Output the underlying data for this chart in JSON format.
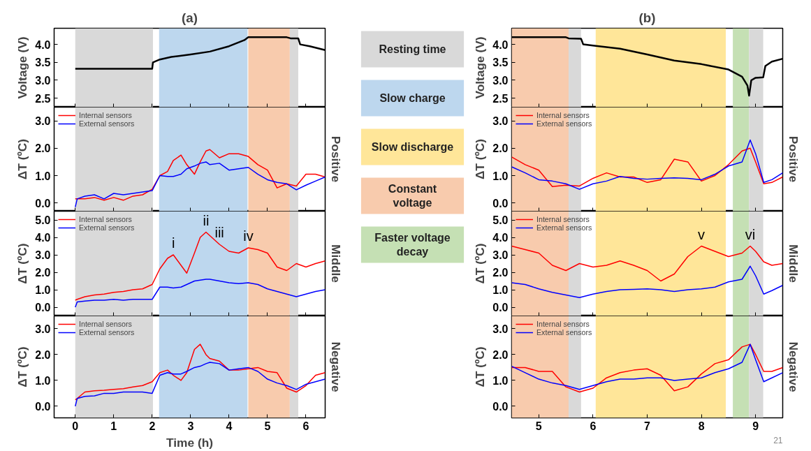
{
  "chart_data": [
    {
      "type": "line",
      "title": "(a)",
      "ylabel": "Voltage (V)",
      "xlim": [
        -0.55,
        6.5
      ],
      "xticks": [
        0,
        1,
        2,
        3,
        4,
        5,
        6
      ],
      "ylim": [
        2.25,
        4.45
      ],
      "yticks": [
        {
          "value": 2.5,
          "label": "2.5"
        },
        {
          "value": 3,
          "label": "3.0"
        },
        {
          "value": 3.5,
          "label": "3.5"
        },
        {
          "value": 4,
          "label": "4.0"
        }
      ],
      "tick_labels": "y",
      "bands": [
        {
          "axis": "x",
          "from": 0,
          "to": 2.02,
          "color": "#d9d9d9"
        },
        {
          "axis": "x",
          "from": 2.18,
          "to": 4.48,
          "color": "#bdd7ee"
        },
        {
          "axis": "x",
          "from": 4.5,
          "to": 5.58,
          "color": "#f8cbad"
        },
        {
          "axis": "x",
          "from": 5.58,
          "to": 5.8,
          "color": "#d9d9d9"
        }
      ],
      "series": [
        {
          "color": "#000000",
          "x": [
            0,
            2.0,
            2.02,
            2.2,
            2.5,
            3,
            3.5,
            4,
            4.4,
            4.5,
            5.5,
            5.6,
            5.8,
            5.85,
            6.1,
            6.5
          ],
          "values": [
            3.32,
            3.32,
            3.5,
            3.58,
            3.65,
            3.72,
            3.8,
            3.95,
            4.12,
            4.2,
            4.2,
            4.17,
            4.17,
            4.0,
            3.95,
            3.84
          ]
        }
      ]
    },
    {
      "type": "line",
      "ylabel": "ΔT (ºC)",
      "y2label": "Positive",
      "xlim": [
        -0.55,
        6.5
      ],
      "xticks": [
        0,
        1,
        2,
        3,
        4,
        5,
        6
      ],
      "ylim": [
        -0.3,
        3.5
      ],
      "yticks": [
        {
          "value": 0,
          "label": "0.0"
        },
        {
          "value": 1,
          "label": "1.0"
        },
        {
          "value": 2,
          "label": "2.0"
        },
        {
          "value": 3,
          "label": "3.0"
        }
      ],
      "tick_labels": "y",
      "legend": "top left",
      "bands": [
        {
          "axis": "x",
          "from": 0,
          "to": 2.02,
          "color": "#d9d9d9"
        },
        {
          "axis": "x",
          "from": 2.18,
          "to": 4.48,
          "color": "#bdd7ee"
        },
        {
          "axis": "x",
          "from": 4.5,
          "to": 5.58,
          "color": "#f8cbad"
        },
        {
          "axis": "x",
          "from": 5.58,
          "to": 5.8,
          "color": "#d9d9d9"
        }
      ],
      "x": [
        0,
        0.05,
        0.25,
        0.5,
        0.75,
        1,
        1.25,
        1.5,
        1.75,
        2,
        2.2,
        2.4,
        2.55,
        2.75,
        2.9,
        3.1,
        3.25,
        3.4,
        3.5,
        3.75,
        4,
        4.25,
        4.5,
        4.75,
        5,
        5.25,
        5.5,
        5.75,
        6,
        6.25,
        6.5
      ],
      "series": [
        {
          "name": "Internal sensors",
          "color": "#ff0000",
          "values": [
            0.15,
            0.15,
            0.15,
            0.2,
            0.1,
            0.2,
            0.1,
            0.25,
            0.3,
            0.5,
            1.0,
            1.15,
            1.55,
            1.75,
            1.4,
            1.05,
            1.5,
            1.9,
            1.95,
            1.65,
            1.8,
            1.8,
            1.7,
            1.4,
            1.2,
            0.55,
            0.7,
            0.62,
            1.05,
            1.05,
            0.95
          ]
        },
        {
          "name": "External sensors",
          "color": "#0000ff",
          "values": [
            -0.15,
            0.15,
            0.25,
            0.3,
            0.15,
            0.35,
            0.3,
            0.35,
            0.4,
            0.45,
            1.0,
            0.97,
            0.97,
            1.05,
            1.25,
            1.35,
            1.45,
            1.5,
            1.4,
            1.45,
            1.2,
            1.25,
            1.3,
            1.05,
            0.85,
            0.75,
            0.7,
            0.48,
            0.65,
            0.8,
            0.95
          ]
        }
      ]
    },
    {
      "type": "line",
      "ylabel": "ΔT (ºC)",
      "y2label": "Middle",
      "xlim": [
        -0.55,
        6.5
      ],
      "xticks": [
        0,
        1,
        2,
        3,
        4,
        5,
        6
      ],
      "ylim": [
        -0.5,
        5.5
      ],
      "yticks": [
        {
          "value": 0,
          "label": "0.0"
        },
        {
          "value": 1,
          "label": "1.0"
        },
        {
          "value": 2,
          "label": "2.0"
        },
        {
          "value": 3,
          "label": "3.0"
        },
        {
          "value": 4,
          "label": "4.0"
        },
        {
          "value": 5,
          "label": "5.0"
        }
      ],
      "tick_labels": "y",
      "legend": "top left",
      "bands": [
        {
          "axis": "x",
          "from": 0,
          "to": 2.02,
          "color": "#d9d9d9"
        },
        {
          "axis": "x",
          "from": 2.18,
          "to": 4.48,
          "color": "#bdd7ee"
        },
        {
          "axis": "x",
          "from": 4.5,
          "to": 5.58,
          "color": "#f8cbad"
        },
        {
          "axis": "x",
          "from": 5.58,
          "to": 5.8,
          "color": "#d9d9d9"
        }
      ],
      "annotations": [
        {
          "text": "i",
          "x": 2.55,
          "y": 3.0
        },
        {
          "text": "ii",
          "x": 3.4,
          "y": 4.3
        },
        {
          "text": "iii",
          "x": 3.75,
          "y": 3.6
        },
        {
          "text": "iv",
          "x": 4.5,
          "y": 3.4
        }
      ],
      "x": [
        0,
        0.05,
        0.25,
        0.5,
        0.75,
        1,
        1.25,
        1.5,
        1.75,
        2,
        2.2,
        2.4,
        2.55,
        2.75,
        2.9,
        3.1,
        3.25,
        3.4,
        3.5,
        3.75,
        4,
        4.25,
        4.5,
        4.75,
        5,
        5.25,
        5.5,
        5.75,
        6,
        6.25,
        6.5
      ],
      "series": [
        {
          "name": "Internal sensors",
          "color": "#ff0000",
          "values": [
            0.4,
            0.45,
            0.6,
            0.7,
            0.75,
            0.85,
            0.9,
            1.0,
            1.05,
            1.3,
            2.2,
            2.8,
            3.0,
            2.4,
            1.95,
            3.1,
            4.0,
            4.3,
            4.1,
            3.6,
            3.2,
            3.1,
            3.4,
            3.3,
            3.1,
            2.3,
            2.1,
            2.5,
            2.3,
            2.5,
            2.65
          ]
        },
        {
          "name": "External sensors",
          "color": "#0000ff",
          "values": [
            0.0,
            0.3,
            0.35,
            0.4,
            0.4,
            0.45,
            0.4,
            0.45,
            0.45,
            0.45,
            1.15,
            1.15,
            1.1,
            1.15,
            1.3,
            1.5,
            1.55,
            1.6,
            1.6,
            1.5,
            1.4,
            1.35,
            1.4,
            1.3,
            1.05,
            0.9,
            0.75,
            0.6,
            0.75,
            0.9,
            1.0
          ]
        }
      ]
    },
    {
      "type": "line",
      "ylabel": "ΔT (ºC)",
      "y2label": "Negative",
      "xlabel": "Time (h)",
      "xlim": [
        -0.55,
        6.5
      ],
      "xticks": [
        0,
        1,
        2,
        3,
        4,
        5,
        6
      ],
      "ylim": [
        -0.45,
        3.5
      ],
      "yticks": [
        {
          "value": 0,
          "label": "0.0"
        },
        {
          "value": 1,
          "label": "1.0"
        },
        {
          "value": 2,
          "label": "2.0"
        },
        {
          "value": 3,
          "label": "3.0"
        }
      ],
      "legend": "top left",
      "bands": [
        {
          "axis": "x",
          "from": 0,
          "to": 2.02,
          "color": "#d9d9d9"
        },
        {
          "axis": "x",
          "from": 2.18,
          "to": 4.48,
          "color": "#bdd7ee"
        },
        {
          "axis": "x",
          "from": 4.5,
          "to": 5.58,
          "color": "#f8cbad"
        },
        {
          "axis": "x",
          "from": 5.58,
          "to": 5.8,
          "color": "#d9d9d9"
        }
      ],
      "x": [
        0,
        0.05,
        0.25,
        0.5,
        0.75,
        1,
        1.25,
        1.5,
        1.75,
        2,
        2.2,
        2.4,
        2.55,
        2.75,
        2.9,
        3.1,
        3.25,
        3.4,
        3.5,
        3.75,
        4,
        4.25,
        4.5,
        4.75,
        5,
        5.25,
        5.5,
        5.75,
        6,
        6.25,
        6.5
      ],
      "series": [
        {
          "name": "Internal sensors",
          "color": "#ff0000",
          "values": [
            0.25,
            0.3,
            0.55,
            0.6,
            0.62,
            0.65,
            0.68,
            0.75,
            0.8,
            0.95,
            1.3,
            1.4,
            1.2,
            1.0,
            1.3,
            2.2,
            2.4,
            2.0,
            1.85,
            1.75,
            1.4,
            1.4,
            1.45,
            1.5,
            1.35,
            1.3,
            0.7,
            0.55,
            0.8,
            1.2,
            1.3
          ]
        },
        {
          "name": "External sensors",
          "color": "#0000ff",
          "values": [
            0.0,
            0.3,
            0.38,
            0.4,
            0.5,
            0.5,
            0.55,
            0.55,
            0.55,
            0.5,
            1.2,
            1.3,
            1.25,
            1.25,
            1.35,
            1.5,
            1.55,
            1.65,
            1.7,
            1.65,
            1.4,
            1.45,
            1.5,
            1.35,
            1.05,
            0.9,
            0.8,
            0.65,
            0.85,
            0.95,
            1.05
          ]
        }
      ]
    },
    {
      "type": "other",
      "categories": [
        "Resting time",
        "Slow charge",
        "Slow discharge",
        "Constant voltage",
        "Faster voltage decay"
      ],
      "colors": [
        "#d9d9d9",
        "#bdd7ee",
        "#ffe699",
        "#f8cbad",
        "#c5e0b4"
      ]
    },
    {
      "type": "line",
      "title": "(b)",
      "ylabel": "Voltage (V)",
      "xlim": [
        4.5,
        9.5
      ],
      "xticks": [
        5,
        6,
        7,
        8,
        9
      ],
      "ylim": [
        2.25,
        4.45
      ],
      "yticks": [
        {
          "value": 2.5,
          "label": "2.5"
        },
        {
          "value": 3,
          "label": "3.0"
        },
        {
          "value": 3.5,
          "label": "3.5"
        },
        {
          "value": 4,
          "label": "4.0"
        }
      ],
      "tick_labels": "y",
      "bands": [
        {
          "axis": "x",
          "from": 4.5,
          "to": 5.55,
          "color": "#f8cbad"
        },
        {
          "axis": "x",
          "from": 5.55,
          "to": 5.78,
          "color": "#d9d9d9"
        },
        {
          "axis": "x",
          "from": 6.05,
          "to": 8.45,
          "color": "#ffe699"
        },
        {
          "axis": "x",
          "from": 8.58,
          "to": 8.88,
          "color": "#c5e0b4"
        },
        {
          "axis": "x",
          "from": 8.88,
          "to": 9.14,
          "color": "#d9d9d9"
        }
      ],
      "series": [
        {
          "color": "#000000",
          "x": [
            4.5,
            5.5,
            5.55,
            5.78,
            5.82,
            6,
            6.5,
            7,
            7.5,
            8,
            8.5,
            8.75,
            8.85,
            8.88,
            8.92,
            9.0,
            9.14,
            9.18,
            9.3,
            9.5
          ],
          "values": [
            4.2,
            4.2,
            4.17,
            4.16,
            4.0,
            3.97,
            3.88,
            3.72,
            3.55,
            3.45,
            3.3,
            3.1,
            2.85,
            2.57,
            3.0,
            3.07,
            3.08,
            3.4,
            3.52,
            3.6
          ]
        }
      ]
    },
    {
      "type": "line",
      "ylabel": "ΔT (ºC)",
      "y2label": "Positive",
      "xlim": [
        4.5,
        9.5
      ],
      "xticks": [
        5,
        6,
        7,
        8,
        9
      ],
      "ylim": [
        -0.3,
        3.5
      ],
      "yticks": [
        {
          "value": 0,
          "label": "0.0"
        },
        {
          "value": 1,
          "label": "1.0"
        },
        {
          "value": 2,
          "label": "2.0"
        },
        {
          "value": 3,
          "label": "3.0"
        }
      ],
      "tick_labels": "y",
      "legend": "top left",
      "bands": [
        {
          "axis": "x",
          "from": 4.5,
          "to": 5.55,
          "color": "#f8cbad"
        },
        {
          "axis": "x",
          "from": 5.55,
          "to": 5.78,
          "color": "#d9d9d9"
        },
        {
          "axis": "x",
          "from": 6.05,
          "to": 8.45,
          "color": "#ffe699"
        },
        {
          "axis": "x",
          "from": 8.58,
          "to": 8.88,
          "color": "#c5e0b4"
        },
        {
          "axis": "x",
          "from": 8.88,
          "to": 9.14,
          "color": "#d9d9d9"
        }
      ],
      "x": [
        4.5,
        4.75,
        5,
        5.25,
        5.5,
        5.75,
        6,
        6.25,
        6.5,
        6.75,
        7,
        7.25,
        7.5,
        7.75,
        8,
        8.25,
        8.5,
        8.75,
        8.9,
        9.0,
        9.15,
        9.3,
        9.5
      ],
      "series": [
        {
          "name": "Internal sensors",
          "color": "#ff0000",
          "values": [
            1.68,
            1.4,
            1.2,
            0.6,
            0.65,
            0.62,
            0.9,
            1.1,
            0.95,
            0.95,
            0.75,
            0.85,
            1.6,
            1.5,
            0.8,
            1.0,
            1.4,
            1.9,
            2.0,
            1.5,
            0.7,
            0.75,
            0.95
          ]
        },
        {
          "name": "External sensors",
          "color": "#0000ff",
          "values": [
            1.32,
            1.1,
            0.85,
            0.8,
            0.7,
            0.5,
            0.7,
            0.8,
            0.97,
            0.9,
            0.87,
            0.9,
            0.92,
            0.9,
            0.85,
            1.05,
            1.35,
            1.5,
            2.3,
            1.8,
            0.75,
            0.85,
            1.1
          ]
        }
      ]
    },
    {
      "type": "line",
      "ylabel": "ΔT (ºC)",
      "y2label": "Middle",
      "xlim": [
        4.5,
        9.5
      ],
      "xticks": [
        5,
        6,
        7,
        8,
        9
      ],
      "ylim": [
        -0.5,
        5.5
      ],
      "yticks": [
        {
          "value": 0,
          "label": "0.0"
        },
        {
          "value": 1,
          "label": "1.0"
        },
        {
          "value": 2,
          "label": "2.0"
        },
        {
          "value": 3,
          "label": "3.0"
        },
        {
          "value": 4,
          "label": "4.0"
        },
        {
          "value": 5,
          "label": "5.0"
        }
      ],
      "tick_labels": "y",
      "legend": "top left",
      "bands": [
        {
          "axis": "x",
          "from": 4.5,
          "to": 5.55,
          "color": "#f8cbad"
        },
        {
          "axis": "x",
          "from": 5.55,
          "to": 5.78,
          "color": "#d9d9d9"
        },
        {
          "axis": "x",
          "from": 6.05,
          "to": 8.45,
          "color": "#ffe699"
        },
        {
          "axis": "x",
          "from": 8.58,
          "to": 8.88,
          "color": "#c5e0b4"
        },
        {
          "axis": "x",
          "from": 8.88,
          "to": 9.14,
          "color": "#d9d9d9"
        }
      ],
      "annotations": [
        {
          "text": "v",
          "x": 8.0,
          "y": 3.5
        },
        {
          "text": "vi",
          "x": 8.9,
          "y": 3.5
        }
      ],
      "x": [
        4.5,
        4.75,
        5,
        5.25,
        5.5,
        5.75,
        6,
        6.25,
        6.5,
        6.75,
        7,
        7.25,
        7.5,
        7.75,
        8,
        8.25,
        8.5,
        8.75,
        8.9,
        9.0,
        9.15,
        9.3,
        9.5
      ],
      "series": [
        {
          "name": "Internal sensors",
          "color": "#ff0000",
          "values": [
            3.5,
            3.3,
            3.1,
            2.4,
            2.1,
            2.5,
            2.3,
            2.4,
            2.65,
            2.4,
            2.1,
            1.5,
            1.9,
            2.9,
            3.5,
            3.2,
            2.9,
            3.1,
            3.5,
            3.2,
            2.6,
            2.4,
            2.5
          ]
        },
        {
          "name": "External sensors",
          "color": "#0000ff",
          "values": [
            1.4,
            1.3,
            1.05,
            0.85,
            0.7,
            0.55,
            0.75,
            0.9,
            1.0,
            1.02,
            1.05,
            1.0,
            0.9,
            1.0,
            1.05,
            1.15,
            1.45,
            1.6,
            2.35,
            1.8,
            0.75,
            0.95,
            1.25
          ]
        }
      ]
    },
    {
      "type": "line",
      "ylabel": "ΔT (ºC)",
      "y2label": "Negative",
      "xlim": [
        4.5,
        9.5
      ],
      "xticks": [
        5,
        6,
        7,
        8,
        9
      ],
      "ylim": [
        -0.45,
        3.5
      ],
      "yticks": [
        {
          "value": 0,
          "label": "0.0"
        },
        {
          "value": 1,
          "label": "1.0"
        },
        {
          "value": 2,
          "label": "2.0"
        },
        {
          "value": 3,
          "label": "3.0"
        }
      ],
      "legend": "top left",
      "bands": [
        {
          "axis": "x",
          "from": 4.5,
          "to": 5.55,
          "color": "#f8cbad"
        },
        {
          "axis": "x",
          "from": 5.55,
          "to": 5.78,
          "color": "#d9d9d9"
        },
        {
          "axis": "x",
          "from": 6.05,
          "to": 8.45,
          "color": "#ffe699"
        },
        {
          "axis": "x",
          "from": 8.58,
          "to": 8.88,
          "color": "#c5e0b4"
        },
        {
          "axis": "x",
          "from": 8.88,
          "to": 9.14,
          "color": "#d9d9d9"
        }
      ],
      "annotations": [
        "21"
      ],
      "x": [
        4.5,
        4.75,
        5,
        5.25,
        5.5,
        5.75,
        6,
        6.25,
        6.5,
        6.75,
        7,
        7.25,
        7.5,
        7.75,
        8,
        8.25,
        8.5,
        8.75,
        8.9,
        9.0,
        9.15,
        9.3,
        9.5
      ],
      "series": [
        {
          "name": "Internal sensors",
          "color": "#ff0000",
          "values": [
            1.5,
            1.5,
            1.35,
            1.35,
            0.75,
            0.55,
            0.7,
            1.1,
            1.3,
            1.4,
            1.45,
            1.2,
            0.6,
            0.75,
            1.25,
            1.65,
            1.8,
            2.3,
            2.4,
            2.0,
            1.35,
            1.35,
            1.5
          ]
        },
        {
          "name": "External sensors",
          "color": "#0000ff",
          "values": [
            1.55,
            1.3,
            1.05,
            0.9,
            0.8,
            0.65,
            0.8,
            0.95,
            1.05,
            1.05,
            1.1,
            1.1,
            1.0,
            1.05,
            1.1,
            1.3,
            1.45,
            1.7,
            2.4,
            1.8,
            0.95,
            1.1,
            1.3
          ]
        }
      ]
    }
  ]
}
